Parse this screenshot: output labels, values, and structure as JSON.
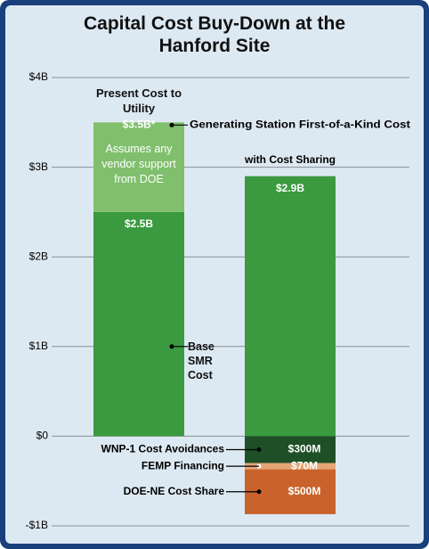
{
  "chart_data": {
    "type": "stacked_bar",
    "title": "Capital Cost Buy-Down at the Hanford Site",
    "categories": [
      "Present Cost to Utility",
      "with Cost Sharing"
    ],
    "series": [
      {
        "name": "Base SMR Cost",
        "color": "#3b9a3f",
        "values": [
          2.5,
          2.9
        ],
        "value_labels": [
          "$2.5B",
          "$2.9B"
        ]
      },
      {
        "name": "Generating Station First-of-a-Kind Cost",
        "color": "#80bf6c",
        "values": [
          1.0,
          null
        ]
      },
      {
        "name": "WNP-1 Cost Avoidances",
        "color": "#1f4f26",
        "values": [
          null,
          -0.3
        ],
        "value_labels": [
          null,
          "$300M"
        ]
      },
      {
        "name": "FEMP Financing",
        "color": "#e6a574",
        "values": [
          null,
          -0.07
        ],
        "value_labels": [
          null,
          "$70M"
        ]
      },
      {
        "name": "DOE-NE Cost Share",
        "color": "#c9632b",
        "values": [
          null,
          -0.5
        ],
        "value_labels": [
          null,
          "$500M"
        ]
      }
    ],
    "annotations": [
      {
        "value": 3.5,
        "label": "$3.5B*"
      }
    ],
    "note": "Assumes any vendor support from DOE",
    "ylim": [
      -1,
      4
    ],
    "yticks": [
      {
        "value": 4,
        "label": "$4B"
      },
      {
        "value": 3,
        "label": "$3B"
      },
      {
        "value": 2,
        "label": "$2B"
      },
      {
        "value": 1,
        "label": "$1B"
      },
      {
        "value": 0,
        "label": "$0"
      },
      {
        "value": -1,
        "label": "-$1B"
      }
    ],
    "grid": true
  }
}
